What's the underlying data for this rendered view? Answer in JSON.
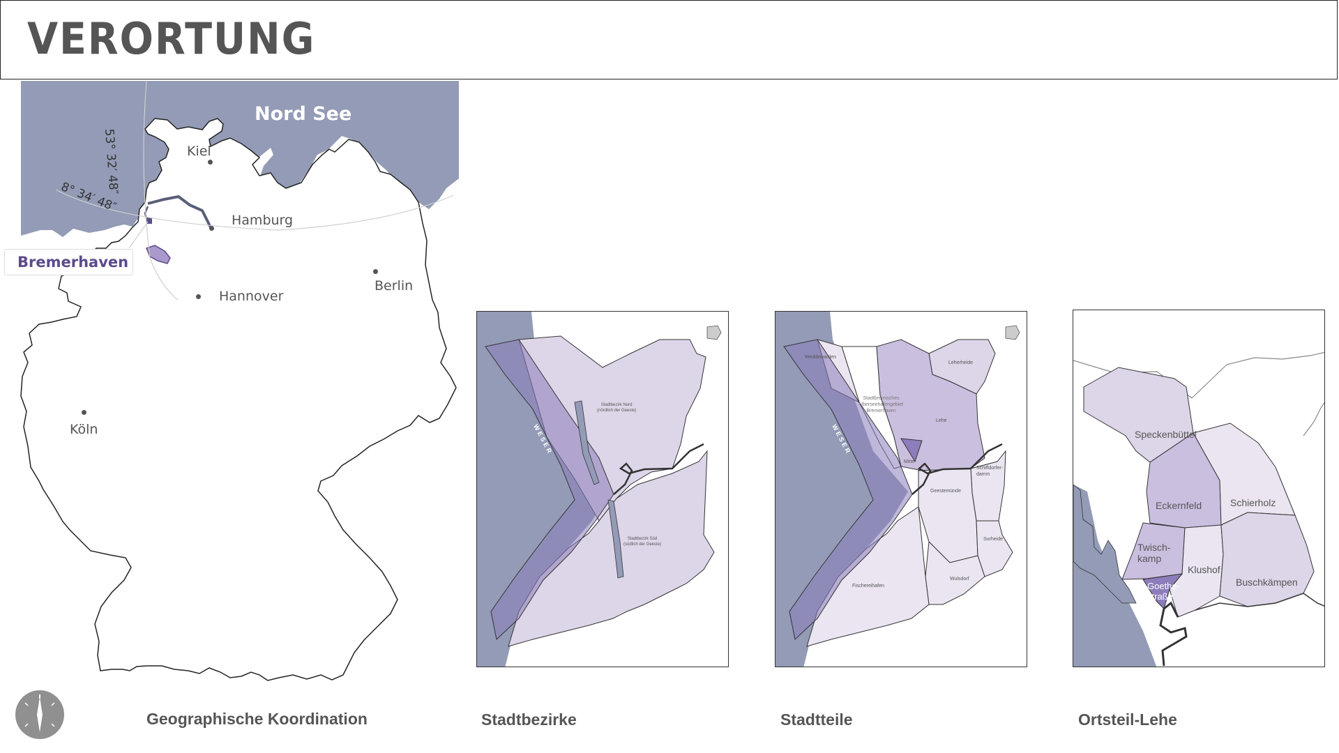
{
  "header": {
    "title": "VERORTUNG"
  },
  "overview_map": {
    "sea_label": "Nord See",
    "highlight_label": "Bremerhaven",
    "latitude_label": "53° 32′ 48″",
    "longitude_label": "8° 34′ 48″",
    "cities": [
      {
        "name": "Kiel"
      },
      {
        "name": "Hamburg"
      },
      {
        "name": "Hannover"
      },
      {
        "name": "Berlin"
      },
      {
        "name": "Köln"
      }
    ],
    "caption": "Geographische Koordination"
  },
  "stadtbezirke_map": {
    "caption": "Stadtbezirke",
    "river_label": "WESER",
    "district_north": "Stadtbezirk Nord",
    "district_north_sub": "(nördlich der Geeste)",
    "district_south": "Stadtbezirk Süd",
    "district_south_sub": "(südlich der Geeste)"
  },
  "stadtteile_map": {
    "caption": "Stadtteile",
    "river_label": "WESER",
    "districts": [
      {
        "name": "Weddewarden"
      },
      {
        "name": "Leherheide"
      },
      {
        "name": "Stadtbremisches"
      },
      {
        "name": "Überseehafengebiet"
      },
      {
        "name": "Bremerhaven"
      },
      {
        "name": "Lehe"
      },
      {
        "name": "Mitte"
      },
      {
        "name": "Schiffdorfer-"
      },
      {
        "name": "damm"
      },
      {
        "name": "Geestemünde"
      },
      {
        "name": "Surheide"
      },
      {
        "name": "Fischereihafen"
      },
      {
        "name": "Wulsdorf"
      }
    ]
  },
  "ortsteil_map": {
    "caption": "Ortsteil-Lehe",
    "districts": [
      {
        "name": "Speckenbüttel"
      },
      {
        "name": "Eckernfeld"
      },
      {
        "name": "Schierholz"
      },
      {
        "name": "Twisch-"
      },
      {
        "name": "kamp"
      },
      {
        "name": "Klushof"
      },
      {
        "name": "Buschkämpen"
      },
      {
        "name": "Goethe-"
      },
      {
        "name": "straße"
      }
    ]
  },
  "colors": {
    "sea": "#939bb6",
    "highlight": "#5c4a8c",
    "district_light": "#ddd5e8",
    "district_mid": "#cbbfe0",
    "district_dark": "#8d7dbb",
    "text_gray": "#555555"
  },
  "compass": {
    "icon": "compass-icon"
  }
}
